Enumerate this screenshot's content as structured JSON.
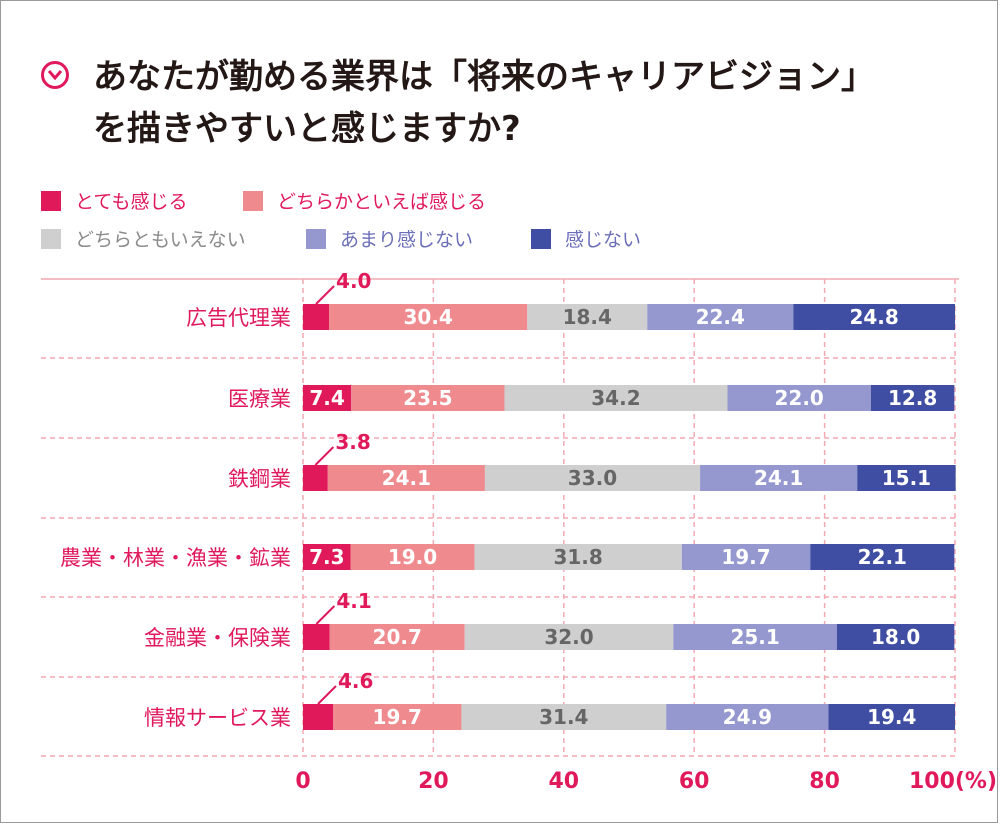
{
  "title_line1": "あなたが勤める業界は「将来のキャリアビジョン」",
  "title_line2": "を描きやすいと感じますか?",
  "chart_data": {
    "type": "bar",
    "stacked": true,
    "orientation": "horizontal",
    "categories": [
      "広告代理業",
      "医療業",
      "鉄鋼業",
      "農業・林業・漁業・鉱業",
      "金融業・保険業",
      "情報サービス業"
    ],
    "series": [
      {
        "name": "とても感じる",
        "color": "#e0195b",
        "values": [
          4.0,
          7.4,
          3.8,
          7.3,
          4.1,
          4.6
        ]
      },
      {
        "name": "どちらかといえば感じる",
        "color": "#ef8a8e",
        "values": [
          30.4,
          23.5,
          24.1,
          19.0,
          20.7,
          19.7
        ]
      },
      {
        "name": "どちらともいえない",
        "color": "#cfcfcf",
        "values": [
          18.4,
          34.2,
          33.0,
          31.8,
          32.0,
          31.4
        ]
      },
      {
        "name": "あまり感じない",
        "color": "#9597cf",
        "values": [
          22.4,
          22.0,
          24.1,
          19.7,
          25.1,
          24.9
        ]
      },
      {
        "name": "感じない",
        "color": "#3f4ea3",
        "values": [
          24.8,
          12.8,
          15.1,
          22.1,
          18.0,
          19.4
        ]
      }
    ],
    "value_labels": {
      "広告代理業": [
        "4.0",
        "30.4",
        "18.4",
        "22.4",
        "24.8"
      ],
      "医療業": [
        "7.4",
        "23.5",
        "34.2",
        "22.0",
        "12.8"
      ],
      "鉄鋼業": [
        "3.8",
        "24.1",
        "33.0",
        "24.1",
        "15.1"
      ],
      "農業・林業・漁業・鉱業": [
        "7.3",
        "19.0",
        "31.8",
        "19.7",
        "22.1"
      ],
      "金融業・保険業": [
        "4.1",
        "20.7",
        "32.0",
        "25.1",
        "18.0"
      ],
      "情報サービス業": [
        "4.6",
        "19.7",
        "31.4",
        "24.9",
        "19.4"
      ]
    },
    "xlim": [
      0,
      100
    ],
    "x_ticks": [
      "0",
      "20",
      "40",
      "60",
      "80",
      "100(%)"
    ],
    "grid": true
  }
}
